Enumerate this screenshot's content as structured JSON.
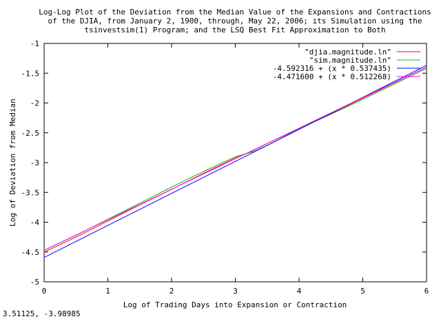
{
  "chart_data": {
    "type": "line",
    "title_lines": [
      "Log-Log Plot of the Deviation from the Median Value of the Expansions and Contractions",
      "of the DJIA, from January 2, 1900, through, May 22, 2006; its Simulation using the",
      "tsinvestsim(1) Program; and the LSQ Best Fit Approximation to Both"
    ],
    "xlabel": "Log of Trading Days into Expansion or Contraction",
    "ylabel": "Log of Deviation from Median",
    "xlim": [
      0,
      6
    ],
    "ylim": [
      -5,
      -1
    ],
    "xticks": [
      0,
      1,
      2,
      3,
      4,
      5,
      6
    ],
    "xtick_labels": [
      "0",
      "1",
      "2",
      "3",
      "4",
      "5",
      "6"
    ],
    "yticks": [
      -5,
      -4.5,
      -4,
      -3.5,
      -3,
      -2.5,
      -2,
      -1.5,
      -1
    ],
    "ytick_labels": [
      "-5",
      "-4.5",
      "-4",
      "-3.5",
      "-3",
      "-2.5",
      "-2",
      "-1.5",
      "-1"
    ],
    "grid": false,
    "legend_position": "top-right",
    "series": [
      {
        "name": "\"djia.magnitude.ln\"",
        "color": "#ff0000",
        "x": [
          0,
          0.5,
          1,
          1.5,
          2,
          2.5,
          3,
          3.2,
          3.5,
          4,
          4.5,
          5,
          5.5,
          6
        ],
        "y": [
          -4.5,
          -4.25,
          -3.98,
          -3.71,
          -3.45,
          -3.18,
          -2.92,
          -2.84,
          -2.68,
          -2.43,
          -2.18,
          -1.92,
          -1.66,
          -1.4
        ]
      },
      {
        "name": "\"sim.magnitude.ln\"",
        "color": "#00c000",
        "x": [
          0,
          0.5,
          1,
          1.5,
          2,
          2.5,
          3,
          3.3,
          3.6,
          4,
          4.5,
          5,
          5.5,
          6
        ],
        "y": [
          -4.47,
          -4.22,
          -3.95,
          -3.68,
          -3.41,
          -3.15,
          -2.9,
          -2.81,
          -2.66,
          -2.43,
          -2.19,
          -1.94,
          -1.68,
          -1.42
        ]
      },
      {
        "name": "-4.592316 + (x * 0.537435)",
        "color": "#0000ff",
        "x": [
          0,
          6
        ],
        "y": [
          -4.592316,
          -1.3677
        ]
      },
      {
        "name": "-4.471600 + (x * 0.512268)",
        "color": "#ff00ff",
        "x": [
          0,
          6
        ],
        "y": [
          -4.4716,
          -1.398
        ]
      }
    ]
  },
  "status": {
    "coordinate_readout": "3.51125, -3.98985"
  }
}
